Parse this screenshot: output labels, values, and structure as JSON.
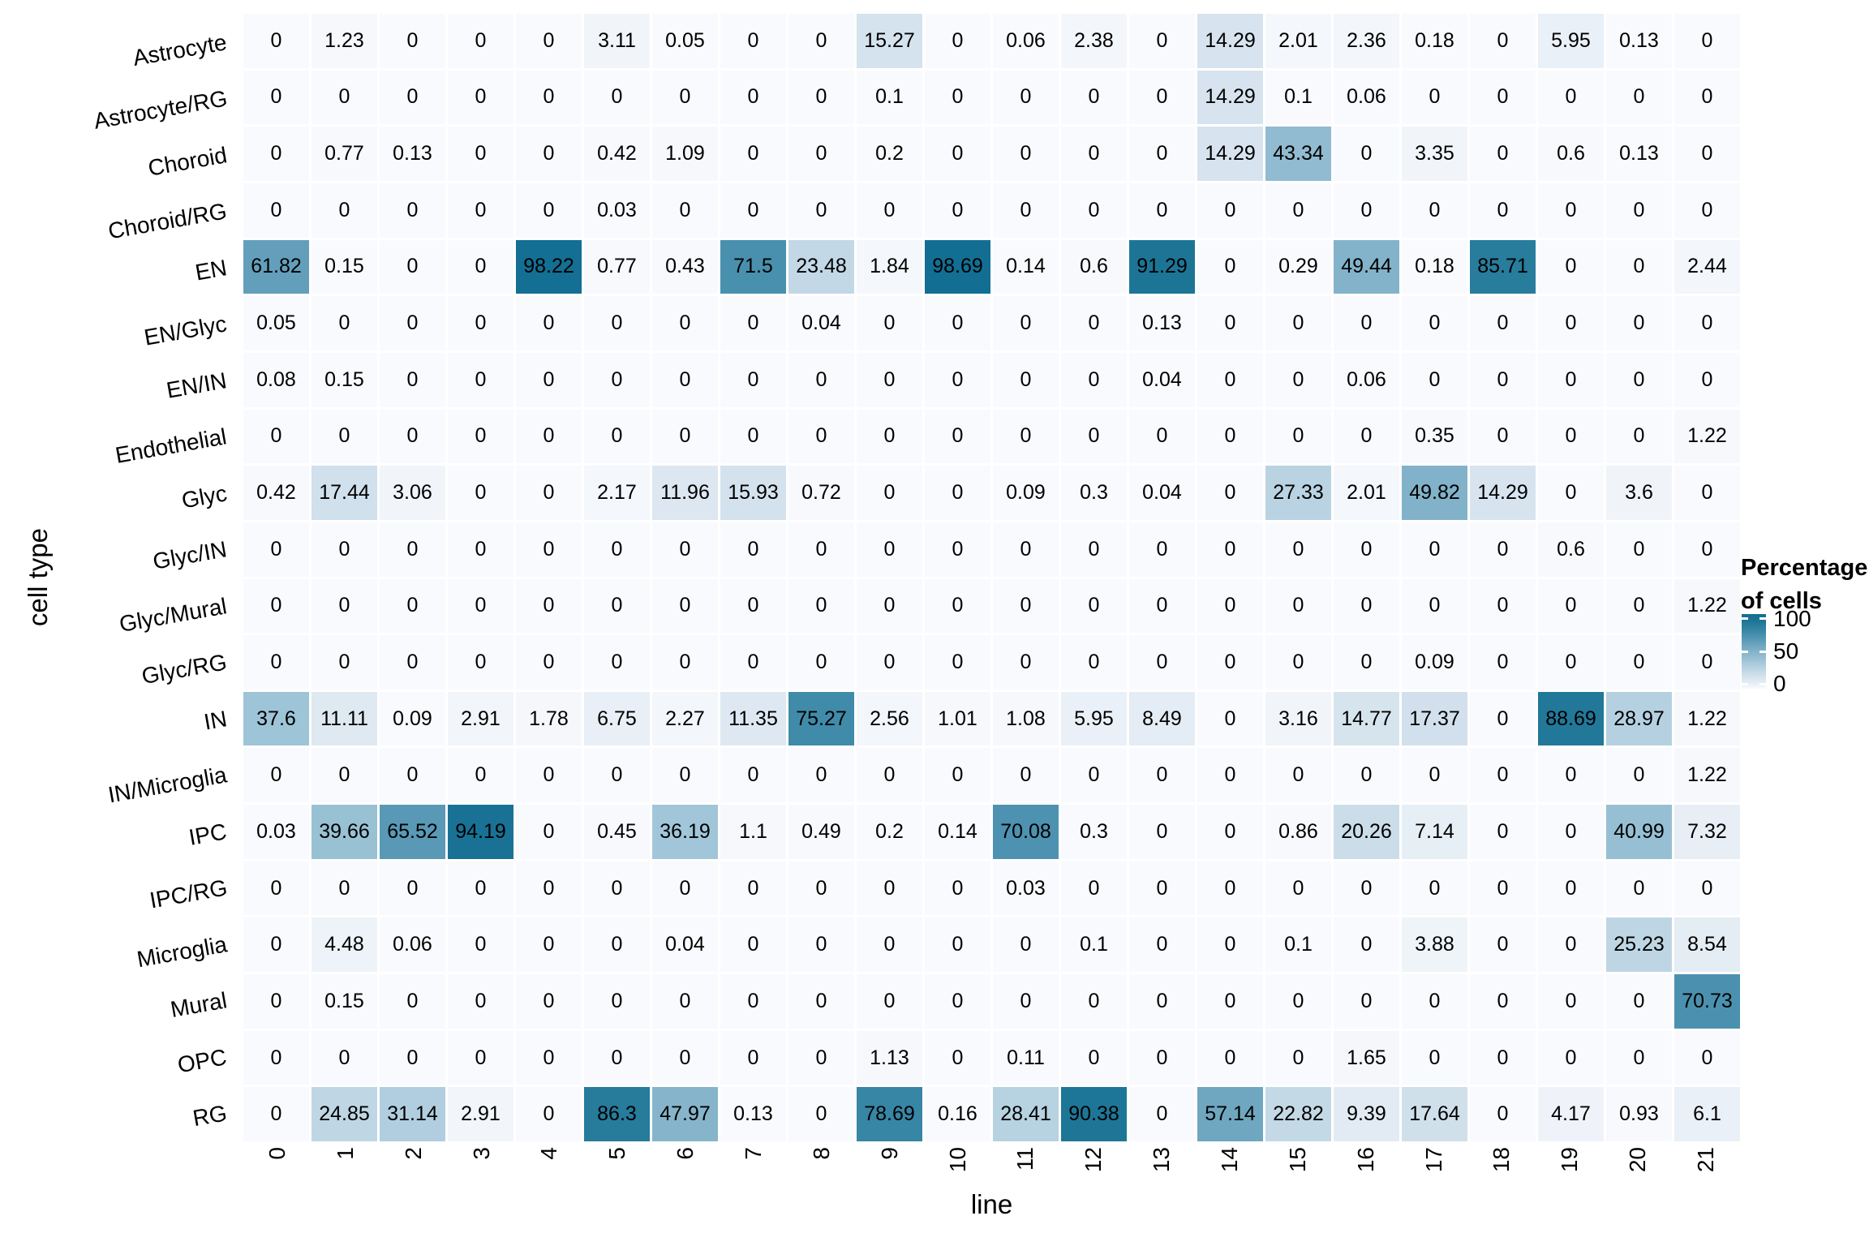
{
  "chart_data": {
    "type": "heatmap",
    "title": "",
    "xlabel": "line",
    "ylabel": "cell type",
    "x_categories": [
      "0",
      "1",
      "2",
      "3",
      "4",
      "5",
      "6",
      "7",
      "8",
      "9",
      "10",
      "11",
      "12",
      "13",
      "14",
      "15",
      "16",
      "17",
      "18",
      "19",
      "20",
      "21"
    ],
    "y_categories": [
      "Astrocyte",
      "Astrocyte/RG",
      "Choroid",
      "Choroid/RG",
      "EN",
      "EN/Glyc",
      "EN/IN",
      "Endothelial",
      "Glyc",
      "Glyc/IN",
      "Glyc/Mural",
      "Glyc/RG",
      "IN",
      "IN/Microglia",
      "IPC",
      "IPC/RG",
      "Microglia",
      "Mural",
      "OPC",
      "RG"
    ],
    "values": [
      [
        0,
        1.23,
        0,
        0,
        0,
        3.11,
        0.05,
        0,
        0,
        15.27,
        0,
        0.06,
        2.38,
        0,
        14.29,
        2.01,
        2.36,
        0.18,
        0,
        5.95,
        0.13,
        0
      ],
      [
        0,
        0,
        0,
        0,
        0,
        0,
        0,
        0,
        0,
        0.1,
        0,
        0,
        0,
        0,
        14.29,
        0.1,
        0.06,
        0,
        0,
        0,
        0,
        0
      ],
      [
        0,
        0.77,
        0.13,
        0,
        0,
        0.42,
        1.09,
        0,
        0,
        0.2,
        0,
        0,
        0,
        0,
        14.29,
        43.34,
        0,
        3.35,
        0,
        0.6,
        0.13,
        0
      ],
      [
        0,
        0,
        0,
        0,
        0,
        0.03,
        0,
        0,
        0,
        0,
        0,
        0,
        0,
        0,
        0,
        0,
        0,
        0,
        0,
        0,
        0,
        0
      ],
      [
        61.82,
        0.15,
        0,
        0,
        98.22,
        0.77,
        0.43,
        71.5,
        23.48,
        1.84,
        98.69,
        0.14,
        0.6,
        91.29,
        0,
        0.29,
        49.44,
        0.18,
        85.71,
        0,
        0,
        2.44
      ],
      [
        0.05,
        0,
        0,
        0,
        0,
        0,
        0,
        0,
        0.04,
        0,
        0,
        0,
        0,
        0.13,
        0,
        0,
        0,
        0,
        0,
        0,
        0,
        0
      ],
      [
        0.08,
        0.15,
        0,
        0,
        0,
        0,
        0,
        0,
        0,
        0,
        0,
        0,
        0,
        0.04,
        0,
        0,
        0.06,
        0,
        0,
        0,
        0,
        0
      ],
      [
        0,
        0,
        0,
        0,
        0,
        0,
        0,
        0,
        0,
        0,
        0,
        0,
        0,
        0,
        0,
        0,
        0,
        0.35,
        0,
        0,
        0,
        1.22
      ],
      [
        0.42,
        17.44,
        3.06,
        0,
        0,
        2.17,
        11.96,
        15.93,
        0.72,
        0,
        0,
        0.09,
        0.3,
        0.04,
        0,
        27.33,
        2.01,
        49.82,
        14.29,
        0,
        3.6,
        0
      ],
      [
        0,
        0,
        0,
        0,
        0,
        0,
        0,
        0,
        0,
        0,
        0,
        0,
        0,
        0,
        0,
        0,
        0,
        0,
        0,
        0.6,
        0,
        0
      ],
      [
        0,
        0,
        0,
        0,
        0,
        0,
        0,
        0,
        0,
        0,
        0,
        0,
        0,
        0,
        0,
        0,
        0,
        0,
        0,
        0,
        0,
        1.22
      ],
      [
        0,
        0,
        0,
        0,
        0,
        0,
        0,
        0,
        0,
        0,
        0,
        0,
        0,
        0,
        0,
        0,
        0,
        0.09,
        0,
        0,
        0,
        0
      ],
      [
        37.6,
        11.11,
        0.09,
        2.91,
        1.78,
        6.75,
        2.27,
        11.35,
        75.27,
        2.56,
        1.01,
        1.08,
        5.95,
        8.49,
        0,
        3.16,
        14.77,
        17.37,
        0,
        88.69,
        28.97,
        1.22
      ],
      [
        0,
        0,
        0,
        0,
        0,
        0,
        0,
        0,
        0,
        0,
        0,
        0,
        0,
        0,
        0,
        0,
        0,
        0,
        0,
        0,
        0,
        1.22
      ],
      [
        0.03,
        39.66,
        65.52,
        94.19,
        0,
        0.45,
        36.19,
        1.1,
        0.49,
        0.2,
        0.14,
        70.08,
        0.3,
        0,
        0,
        0.86,
        20.26,
        7.14,
        0,
        0,
        40.99,
        7.32
      ],
      [
        0,
        0,
        0,
        0,
        0,
        0,
        0,
        0,
        0,
        0,
        0,
        0.03,
        0,
        0,
        0,
        0,
        0,
        0,
        0,
        0,
        0,
        0
      ],
      [
        0,
        4.48,
        0.06,
        0,
        0,
        0,
        0.04,
        0,
        0,
        0,
        0,
        0,
        0.1,
        0,
        0,
        0.1,
        0,
        3.88,
        0,
        0,
        25.23,
        8.54
      ],
      [
        0,
        0.15,
        0,
        0,
        0,
        0,
        0,
        0,
        0,
        0,
        0,
        0,
        0,
        0,
        0,
        0,
        0,
        0,
        0,
        0,
        0,
        70.73
      ],
      [
        0,
        0,
        0,
        0,
        0,
        0,
        0,
        0,
        0,
        1.13,
        0,
        0.11,
        0,
        0,
        0,
        0,
        1.65,
        0,
        0,
        0,
        0,
        0
      ],
      [
        0,
        24.85,
        31.14,
        2.91,
        0,
        86.3,
        47.97,
        0.13,
        0,
        78.69,
        0.16,
        28.41,
        90.38,
        0,
        57.14,
        22.82,
        9.39,
        17.64,
        0,
        4.17,
        0.93,
        6.1
      ]
    ],
    "value_range": [
      0,
      100
    ],
    "grid": "white gaps between tiles",
    "legend_position": "right",
    "legend": {
      "title_line1": "Percentage",
      "title_line2": "of cells",
      "tick_labels": [
        "100",
        "50",
        "0"
      ],
      "tick_values": [
        100,
        50,
        0
      ],
      "tick_fractions_from_top": [
        0.06,
        0.5,
        0.94
      ]
    },
    "colors": {
      "background": "#ffffff",
      "text": "#000000",
      "ramp_stops": [
        [
          0,
          "#f9fafd"
        ],
        [
          10,
          "#e0eaf3"
        ],
        [
          20,
          "#cbdde9"
        ],
        [
          30,
          "#b3d0e0"
        ],
        [
          40,
          "#98c0d4"
        ],
        [
          50,
          "#82b2c9"
        ],
        [
          60,
          "#68a2bd"
        ],
        [
          70,
          "#4d92b0"
        ],
        [
          80,
          "#3484a3"
        ],
        [
          90,
          "#1f7697"
        ],
        [
          100,
          "#116d92"
        ]
      ]
    }
  }
}
